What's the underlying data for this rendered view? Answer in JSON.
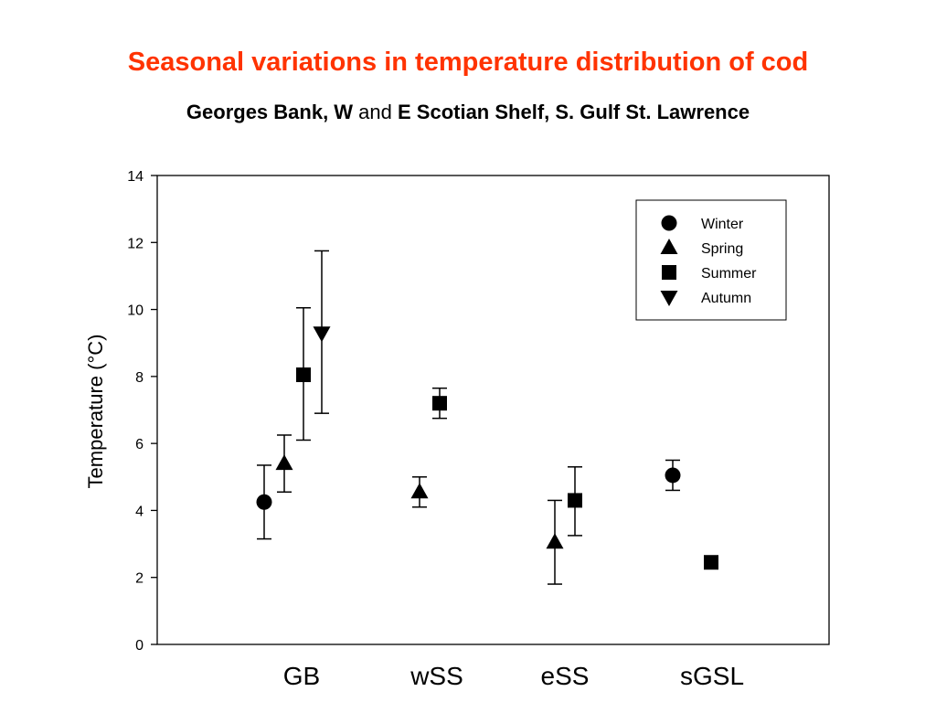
{
  "title": "Seasonal variations in temperature distribution of cod",
  "subtitle": {
    "part1": "Georges Bank, W",
    "part2": " and ",
    "part3": "E Scotian Shelf, S. Gulf St. Lawrence"
  },
  "colors": {
    "title": "#ff3300",
    "ink": "#000000"
  },
  "chart_data": {
    "type": "scatter",
    "ylabel": "Temperature (°C)",
    "xlabel": "",
    "ylim": [
      0,
      14
    ],
    "yticks": [
      0,
      2,
      4,
      6,
      8,
      10,
      12,
      14
    ],
    "categories": [
      "GB",
      "wSS",
      "eSS",
      "sGSL"
    ],
    "grid": false,
    "legend_position": "top-right",
    "series": [
      {
        "name": "Winter",
        "marker": "circle",
        "points": [
          {
            "category": "GB",
            "y": 4.25,
            "low": 3.15,
            "high": 5.35
          },
          {
            "category": "sGSL",
            "y": 5.05,
            "low": 4.6,
            "high": 5.5
          }
        ]
      },
      {
        "name": "Spring",
        "marker": "triangle-up",
        "points": [
          {
            "category": "GB",
            "y": 5.4,
            "low": 4.55,
            "high": 6.25
          },
          {
            "category": "wSS",
            "y": 4.55,
            "low": 4.1,
            "high": 5.0
          },
          {
            "category": "eSS",
            "y": 3.05,
            "low": 1.8,
            "high": 4.3
          }
        ]
      },
      {
        "name": "Summer",
        "marker": "square",
        "points": [
          {
            "category": "GB",
            "y": 8.05,
            "low": 6.1,
            "high": 10.05
          },
          {
            "category": "wSS",
            "y": 7.2,
            "low": 6.75,
            "high": 7.65
          },
          {
            "category": "eSS",
            "y": 4.3,
            "low": 3.25,
            "high": 5.3
          },
          {
            "category": "sGSL",
            "y": 2.45,
            "low": null,
            "high": null
          }
        ]
      },
      {
        "name": "Autumn",
        "marker": "triangle-down",
        "points": [
          {
            "category": "GB",
            "y": 9.3,
            "low": 6.9,
            "high": 11.75
          }
        ]
      }
    ]
  }
}
